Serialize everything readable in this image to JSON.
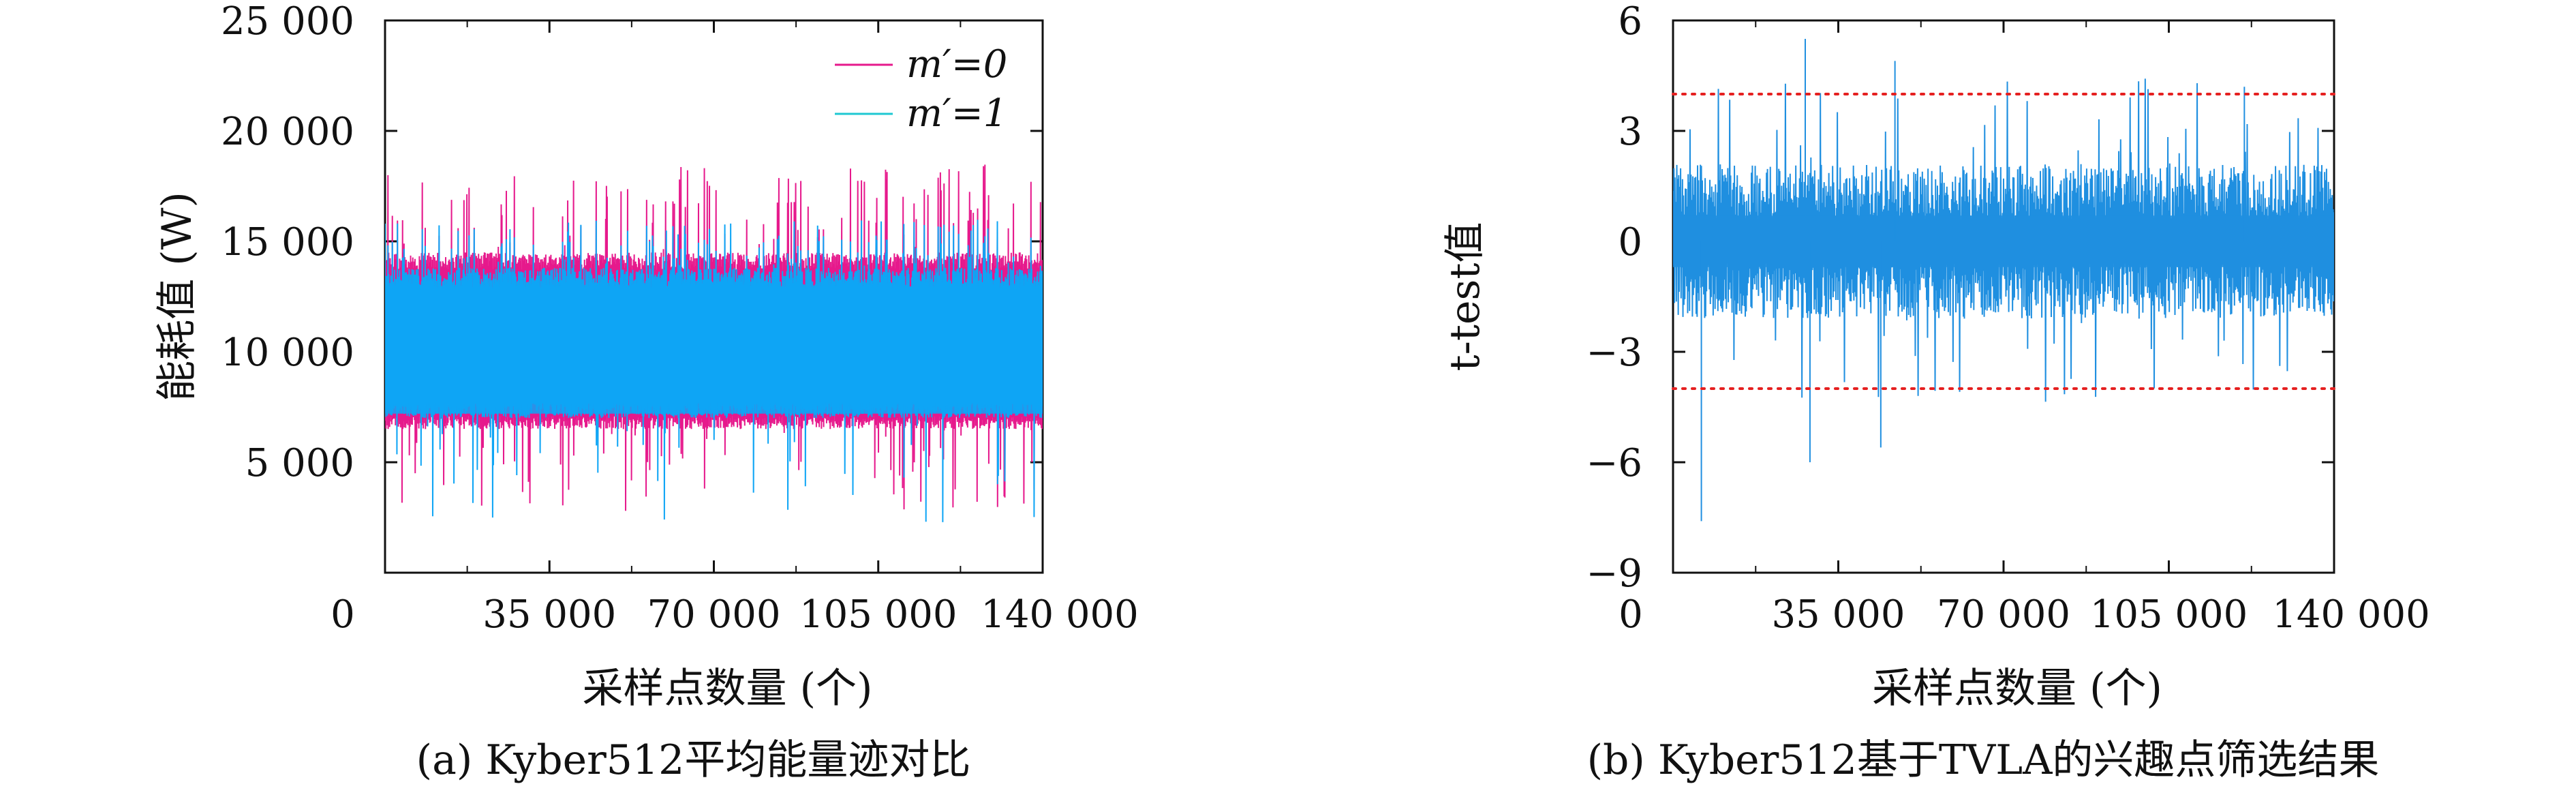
{
  "chart_data": [
    {
      "id": "a",
      "type": "line",
      "caption": "(a) Kyber512平均能量迹对比",
      "xlabel": "采样点数量 (个)",
      "ylabel": "能耗值 (W)",
      "xlim": [
        0,
        140000
      ],
      "ylim": [
        0,
        25000
      ],
      "xticks": [
        0,
        35000,
        70000,
        105000,
        140000
      ],
      "xtick_labels": [
        "0",
        "35 000",
        "70 000",
        "105 000",
        "140 000"
      ],
      "yticks": [
        5000,
        10000,
        15000,
        20000,
        25000
      ],
      "ytick_labels": [
        "5 000",
        "10 000",
        "15 000",
        "20 000",
        "25 000"
      ],
      "legend_position": "top-right",
      "legend": [
        "m′=0",
        "m′=1"
      ],
      "series": [
        {
          "name": "m′=0",
          "color": "#e6198c",
          "center": 9500,
          "upper_typical": 14500,
          "upper_max": 18600,
          "lower_typical": 6500,
          "lower_min": 2800
        },
        {
          "name": "m′=1",
          "color": "#1ec8d2",
          "center": 9500,
          "upper_typical": 13800,
          "upper_max": 16000,
          "lower_typical": 7000,
          "lower_min": 2200
        }
      ],
      "fill_color": "#0ea5f5"
    },
    {
      "id": "b",
      "type": "line",
      "caption": "(b) Kyber512基于TVLA的兴趣点筛选结果",
      "xlabel": "采样点数量 (个)",
      "ylabel": "t-test值",
      "xlim": [
        0,
        140000
      ],
      "ylim": [
        -9,
        6
      ],
      "xticks": [
        0,
        35000,
        70000,
        105000,
        140000
      ],
      "xtick_labels": [
        "0",
        "35 000",
        "70 000",
        "105 000",
        "140 000"
      ],
      "yticks": [
        -9,
        -6,
        -3,
        0,
        3,
        6
      ],
      "ytick_labels": [
        "−9",
        "−6",
        "−3",
        "0",
        "3",
        "6"
      ],
      "thresholds": [
        4,
        -4
      ],
      "threshold_color": "#e52020",
      "series": [
        {
          "name": "",
          "color": "#1f8fe0",
          "typical_amplitude": 1.5,
          "max": 5.5,
          "min": -7.6
        }
      ]
    }
  ]
}
